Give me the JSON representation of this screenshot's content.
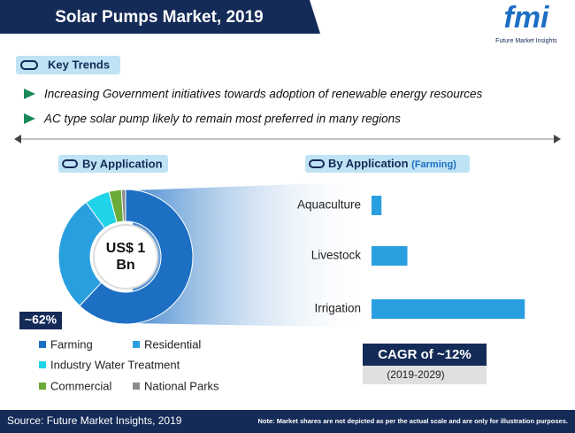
{
  "header": {
    "title": "Solar Pumps Market, 2019",
    "logo": "fmi",
    "logo_caption": "Future Market Insights"
  },
  "key_trends": {
    "title": "Key Trends",
    "items": [
      "Increasing Government initiatives towards adoption of renewable energy resources",
      "AC type solar pump likely to remain most preferred in many regions"
    ]
  },
  "chart_data": [
    {
      "type": "donut",
      "title": "By Application",
      "center_label": "US$ 1 Bn",
      "categories": [
        "Farming",
        "Residential",
        "Industry Water Treatment",
        "Commercial",
        "National Parks"
      ],
      "values": [
        62,
        28,
        6,
        3,
        1
      ],
      "value_labels": [
        "~62%",
        null,
        null,
        null,
        null
      ],
      "colors": [
        "#1d6fc4",
        "#2a9fe0",
        "#1fd3e8",
        "#6aab3a",
        "#8c8c8c"
      ]
    },
    {
      "type": "hbar",
      "title": "By Application",
      "subtitle": "(Farming)",
      "categories": [
        "Aquaculture",
        "Livestock",
        "Irrigation"
      ],
      "values": [
        5,
        18,
        77
      ],
      "color": "#2a9fe0"
    }
  ],
  "cagr": {
    "label": "CAGR of ~12%",
    "period": "(2019-2029)"
  },
  "footer": {
    "source": "Source: Future Market Insights, 2019",
    "note": "Note: Market shares are not depicted as per the actual scale and are only for illustration purposes."
  }
}
